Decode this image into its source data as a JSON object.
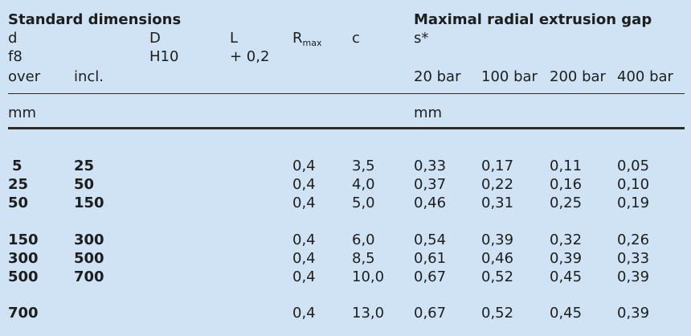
{
  "header": {
    "group_standard": "Standard dimensions",
    "group_extrusion": "Maximal radial extrusion gap",
    "col_d": "d",
    "col_d_tol": "f8",
    "col_over": "over",
    "col_incl": "incl.",
    "col_D": "D",
    "col_D_tol": "H10",
    "col_L": "L",
    "col_L_tol": "+ 0,2",
    "col_R": "R",
    "col_R_sub": "max",
    "col_c": "c",
    "col_s": "s*",
    "pressures": [
      "20 bar",
      "100 bar",
      "200 bar",
      "400 bar"
    ],
    "unit_left": "mm",
    "unit_right": "mm"
  },
  "rows": [
    {
      "over": "5",
      "incl": "25",
      "r": "0,4",
      "c": "3,5",
      "s20": "0,33",
      "s100": "0,17",
      "s200": "0,11",
      "s400": "0,05"
    },
    {
      "over": "25",
      "incl": "50",
      "r": "0,4",
      "c": "4,0",
      "s20": "0,37",
      "s100": "0,22",
      "s200": "0,16",
      "s400": "0,10"
    },
    {
      "over": "50",
      "incl": "150",
      "r": "0,4",
      "c": "5,0",
      "s20": "0,46",
      "s100": "0,31",
      "s200": "0,25",
      "s400": "0,19"
    },
    {
      "over": "150",
      "incl": "300",
      "r": "0,4",
      "c": "6,0",
      "s20": "0,54",
      "s100": "0,39",
      "s200": "0,32",
      "s400": "0,26"
    },
    {
      "over": "300",
      "incl": "500",
      "r": "0,4",
      "c": "8,5",
      "s20": "0,61",
      "s100": "0,46",
      "s200": "0,39",
      "s400": "0,33"
    },
    {
      "over": "500",
      "incl": "700",
      "r": "0,4",
      "c": "10,0",
      "s20": "0,67",
      "s100": "0,52",
      "s200": "0,45",
      "s400": "0,39"
    },
    {
      "over": "700",
      "incl": "",
      "r": "0,4",
      "c": "13,0",
      "s20": "0,67",
      "s100": "0,52",
      "s200": "0,45",
      "s400": "0,39"
    }
  ]
}
